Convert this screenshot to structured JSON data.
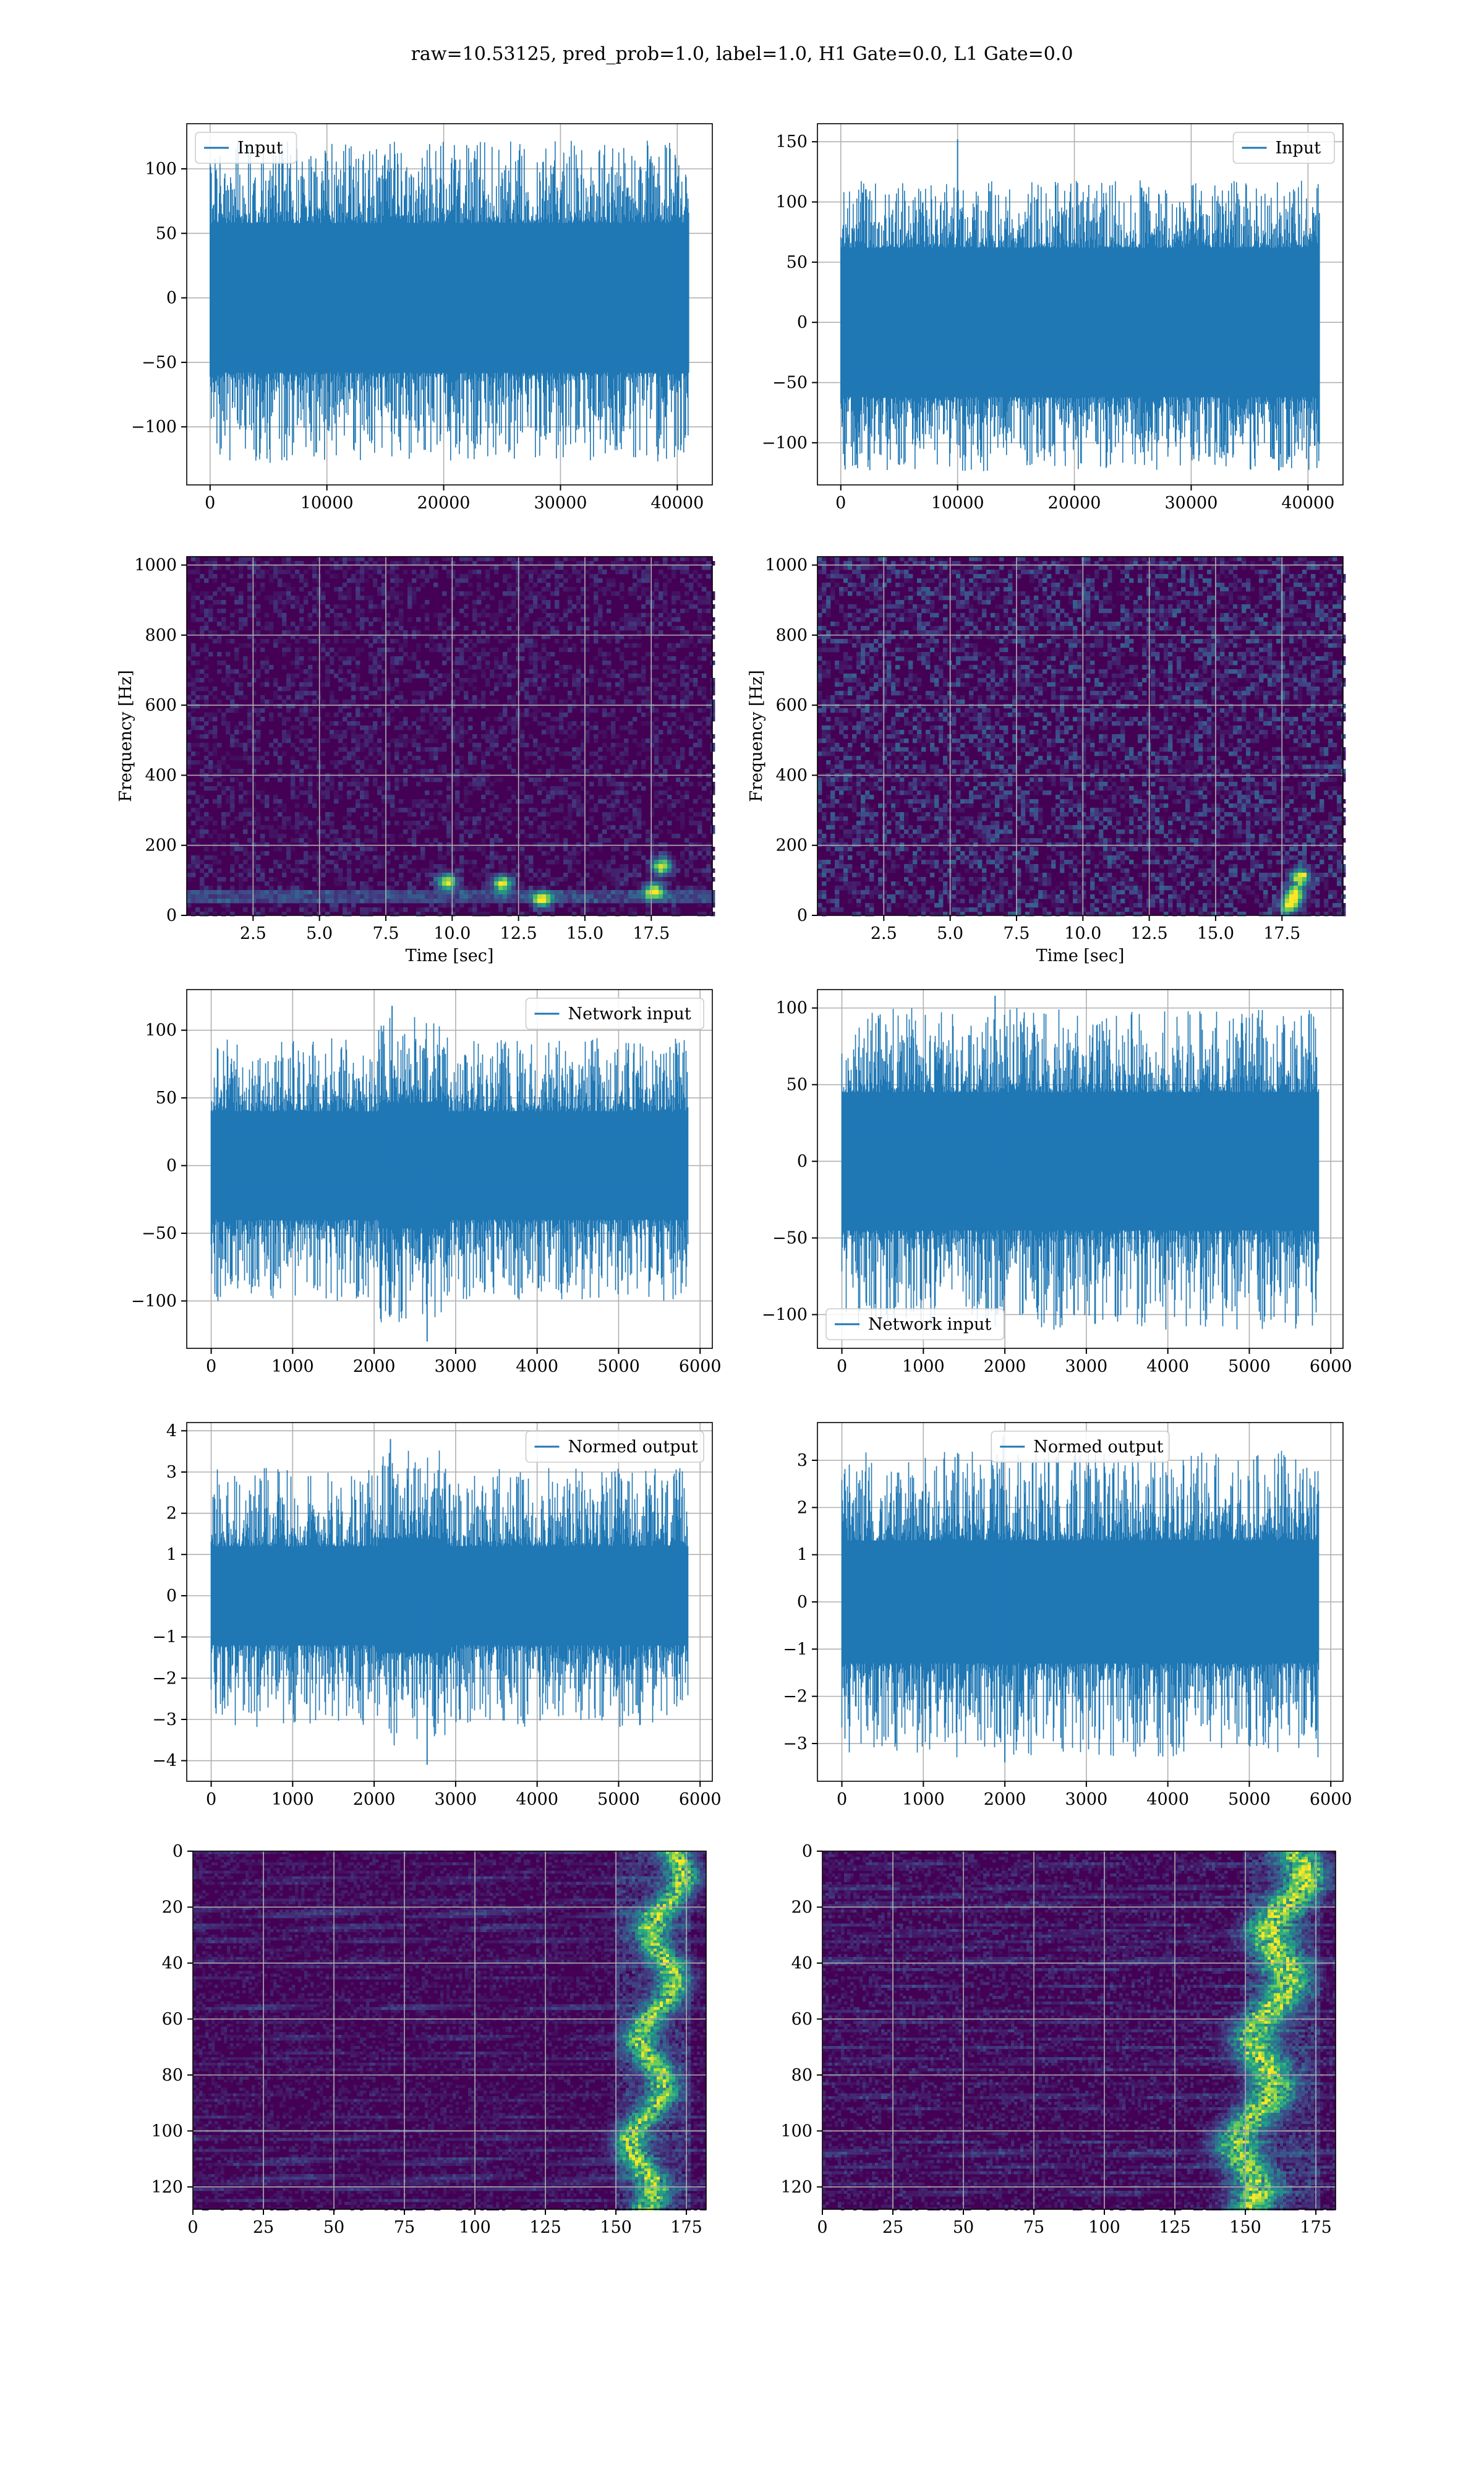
{
  "figure": {
    "suptitle": "raw=10.53125, pred_prob=1.0, label=1.0, H1 Gate=0.0, L1 Gate=0.0",
    "line_color": "#1f77b4",
    "grid_color": "#b0b0b0"
  },
  "chart_data": [
    {
      "panel": "row1-left",
      "type": "line",
      "legend": "Input",
      "legend_loc": "upper left",
      "xlim": [
        -2000,
        43000
      ],
      "ylim": [
        -145,
        135
      ],
      "xticks": [
        0,
        10000,
        20000,
        30000,
        40000
      ],
      "xtick_labels": [
        "0",
        "10000",
        "20000",
        "30000",
        "40000"
      ],
      "yticks": [
        100,
        50,
        0,
        -50,
        -100
      ],
      "ytick_labels": [
        "100",
        "50",
        "0",
        "−50",
        "−100"
      ],
      "signal": {
        "n": 40960,
        "x_end": 40960,
        "core_sigma": 26,
        "peak_min": 58,
        "peak_max": 122,
        "trough_min": -58,
        "trough_max": -128,
        "bursts": []
      }
    },
    {
      "panel": "row1-right",
      "type": "line",
      "legend": "Input",
      "legend_loc": "upper right",
      "xlim": [
        -2000,
        43000
      ],
      "ylim": [
        -135,
        165
      ],
      "xticks": [
        0,
        10000,
        20000,
        30000,
        40000
      ],
      "xtick_labels": [
        "0",
        "10000",
        "20000",
        "30000",
        "40000"
      ],
      "yticks": [
        150,
        100,
        50,
        0,
        -50,
        -100
      ],
      "ytick_labels": [
        "150",
        "100",
        "50",
        "0",
        "−50",
        "−100"
      ],
      "signal": {
        "n": 40960,
        "x_end": 40960,
        "core_sigma": 27,
        "peak_min": 62,
        "peak_max": 118,
        "trough_min": -62,
        "trough_max": -124,
        "spike": [
          10000,
          152
        ],
        "bursts": []
      }
    },
    {
      "panel": "row2-left",
      "type": "heatmap",
      "xlabel": "Time [sec]",
      "ylabel": "Frequency [Hz]",
      "xlim": [
        0,
        19.8
      ],
      "ylim": [
        0,
        1024
      ],
      "xticks": [
        2.5,
        5.0,
        7.5,
        10.0,
        12.5,
        15.0,
        17.5
      ],
      "xtick_labels": [
        "2.5",
        "5.0",
        "7.5",
        "10.0",
        "12.5",
        "15.0",
        "17.5"
      ],
      "yticks": [
        0,
        200,
        400,
        600,
        800,
        1000
      ],
      "ytick_labels": [
        "0",
        "200",
        "400",
        "600",
        "800",
        "1000"
      ],
      "colormap": "viridis",
      "noise": 0.18,
      "lowband": [
        40,
        60
      ],
      "hotspots": [
        [
          13.4,
          45
        ],
        [
          11.9,
          90
        ],
        [
          17.9,
          140
        ],
        [
          17.6,
          70
        ],
        [
          9.8,
          95
        ]
      ]
    },
    {
      "panel": "row2-right",
      "type": "heatmap",
      "xlabel": "Time [sec]",
      "ylabel": "Frequency [Hz]",
      "xlim": [
        0,
        19.8
      ],
      "ylim": [
        0,
        1024
      ],
      "xticks": [
        2.5,
        5.0,
        7.5,
        10.0,
        12.5,
        15.0,
        17.5
      ],
      "xtick_labels": [
        "2.5",
        "5.0",
        "7.5",
        "10.0",
        "12.5",
        "15.0",
        "17.5"
      ],
      "yticks": [
        0,
        200,
        400,
        600,
        800,
        1000
      ],
      "ytick_labels": [
        "0",
        "200",
        "400",
        "600",
        "800",
        "1000"
      ],
      "colormap": "viridis",
      "noise": 0.32,
      "lowband": [],
      "hotspots": [
        [
          18.2,
          110
        ],
        [
          18.0,
          60
        ],
        [
          17.8,
          30
        ]
      ]
    },
    {
      "panel": "row3-left",
      "type": "line",
      "legend": "Network input",
      "legend_loc": "upper right",
      "xlim": [
        -300,
        6150
      ],
      "ylim": [
        -135,
        130
      ],
      "xticks": [
        0,
        1000,
        2000,
        3000,
        4000,
        5000,
        6000
      ],
      "xtick_labels": [
        "0",
        "1000",
        "2000",
        "3000",
        "4000",
        "5000",
        "6000"
      ],
      "yticks": [
        100,
        50,
        0,
        -50,
        -100
      ],
      "ytick_labels": [
        "100",
        "50",
        "0",
        "−50",
        "−100"
      ],
      "signal": {
        "n": 5850,
        "x_end": 5850,
        "core_sigma": 14,
        "peak_min": 40,
        "peak_max": 95,
        "trough_min": -40,
        "trough_max": -100,
        "bursts": [
          [
            2050,
            2900,
            1.35
          ]
        ],
        "extreme": [
          [
            2650,
            -130
          ],
          [
            2220,
            118
          ]
        ]
      }
    },
    {
      "panel": "row3-right",
      "type": "line",
      "legend": "Network input",
      "legend_loc": "lower left",
      "xlim": [
        -300,
        6150
      ],
      "ylim": [
        -122,
        112
      ],
      "xticks": [
        0,
        1000,
        2000,
        3000,
        4000,
        5000,
        6000
      ],
      "xtick_labels": [
        "0",
        "1000",
        "2000",
        "3000",
        "4000",
        "5000",
        "6000"
      ],
      "yticks": [
        100,
        50,
        0,
        -50,
        -100
      ],
      "ytick_labels": [
        "100",
        "50",
        "0",
        "−50",
        "−100"
      ],
      "signal": {
        "n": 5850,
        "x_end": 5850,
        "core_sigma": 15,
        "peak_min": 45,
        "peak_max": 100,
        "trough_min": -45,
        "trough_max": -110,
        "bursts": [],
        "extreme": [
          [
            1880,
            108
          ]
        ]
      }
    },
    {
      "panel": "row4-left",
      "type": "line",
      "legend": "Normed output",
      "legend_loc": "upper right",
      "xlim": [
        -300,
        6150
      ],
      "ylim": [
        -4.5,
        4.2
      ],
      "xticks": [
        0,
        1000,
        2000,
        3000,
        4000,
        5000,
        6000
      ],
      "xtick_labels": [
        "0",
        "1000",
        "2000",
        "3000",
        "4000",
        "5000",
        "6000"
      ],
      "yticks": [
        4,
        3,
        2,
        1,
        0,
        -1,
        -2,
        -3,
        -4
      ],
      "ytick_labels": [
        "4",
        "3",
        "2",
        "1",
        "0",
        "−1",
        "−2",
        "−3",
        "−4"
      ],
      "signal": {
        "n": 5850,
        "x_end": 5850,
        "core_sigma": 0.45,
        "peak_min": 1.2,
        "peak_max": 3.1,
        "trough_min": -1.2,
        "trough_max": -3.2,
        "bursts": [
          [
            2050,
            2900,
            1.3
          ]
        ],
        "extreme": [
          [
            2650,
            -4.1
          ],
          [
            2200,
            3.8
          ]
        ]
      }
    },
    {
      "panel": "row4-right",
      "type": "line",
      "legend": "Normed output",
      "legend_loc": "upper center",
      "xlim": [
        -300,
        6150
      ],
      "ylim": [
        -3.8,
        3.8
      ],
      "xticks": [
        0,
        1000,
        2000,
        3000,
        4000,
        5000,
        6000
      ],
      "xtick_labels": [
        "0",
        "1000",
        "2000",
        "3000",
        "4000",
        "5000",
        "6000"
      ],
      "yticks": [
        3,
        2,
        1,
        0,
        -1,
        -2,
        -3
      ],
      "ytick_labels": [
        "3",
        "2",
        "1",
        "0",
        "−1",
        "−2",
        "−3"
      ],
      "signal": {
        "n": 5850,
        "x_end": 5850,
        "core_sigma": 0.5,
        "peak_min": 1.3,
        "peak_max": 3.2,
        "trough_min": -1.3,
        "trough_max": -3.3,
        "bursts": [],
        "extreme": [
          [
            1980,
            3.5
          ],
          [
            2000,
            -3.4
          ]
        ]
      }
    },
    {
      "panel": "row5-left",
      "type": "heatmap",
      "xlim": [
        0,
        182
      ],
      "ylim": [
        128,
        0
      ],
      "xticks": [
        0,
        25,
        50,
        75,
        100,
        125,
        150,
        175
      ],
      "xtick_labels": [
        "0",
        "25",
        "50",
        "75",
        "100",
        "125",
        "150",
        "175"
      ],
      "yticks": [
        0,
        20,
        40,
        60,
        80,
        100,
        120
      ],
      "ytick_labels": [
        "0",
        "20",
        "40",
        "60",
        "80",
        "100",
        "120"
      ],
      "colormap": "viridis",
      "noise": 0.12,
      "streaks": true,
      "ridge": {
        "x_top": 170,
        "x_bottom": 158,
        "width": 6,
        "strength": 0.9
      }
    },
    {
      "panel": "row5-right",
      "type": "heatmap",
      "xlim": [
        0,
        182
      ],
      "ylim": [
        128,
        0
      ],
      "xticks": [
        0,
        25,
        50,
        75,
        100,
        125,
        150,
        175
      ],
      "xtick_labels": [
        "0",
        "25",
        "50",
        "75",
        "100",
        "125",
        "150",
        "175"
      ],
      "yticks": [
        0,
        20,
        40,
        60,
        80,
        100,
        120
      ],
      "ytick_labels": [
        "0",
        "20",
        "40",
        "60",
        "80",
        "100",
        "120"
      ],
      "colormap": "viridis",
      "noise": 0.15,
      "streaks": true,
      "ridge": {
        "x_top": 168,
        "x_bottom": 148,
        "width": 8,
        "strength": 0.95
      }
    }
  ]
}
